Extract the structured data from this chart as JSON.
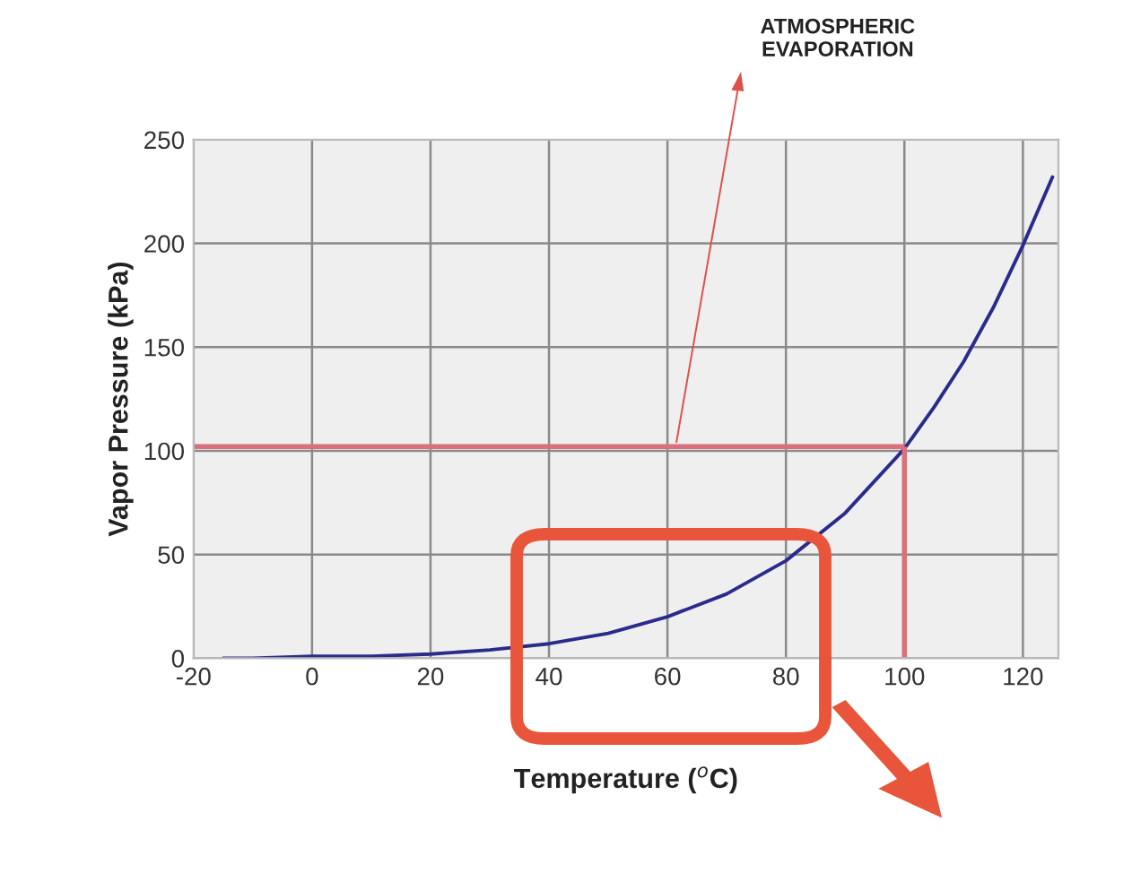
{
  "chart_data": {
    "type": "line",
    "xlabel": "Temperature ($^{o}$C)",
    "ylabel": "Vapor Pressure (kPa)",
    "x": [
      -15,
      -10,
      0,
      10,
      20,
      30,
      40,
      50,
      60,
      70,
      80,
      90,
      100,
      105,
      110,
      115,
      120,
      125
    ],
    "series": [
      {
        "color": "#2b2b8c",
        "values": [
          0,
          0,
          1,
          1,
          2,
          4,
          7,
          12,
          20,
          31,
          47,
          70,
          101,
          121,
          143,
          169,
          199,
          232
        ]
      }
    ],
    "xlim": [
      -20,
      126
    ],
    "ylim": [
      0,
      250
    ],
    "xticks": [
      -20,
      0,
      20,
      40,
      60,
      80,
      100,
      120
    ],
    "yticks": [
      0,
      50,
      100,
      150,
      200,
      250
    ],
    "grid": true,
    "marker": "none",
    "line_style": "solid",
    "ref_lines": [
      {
        "axis": "y",
        "value": 102,
        "color": "#d9707a"
      },
      {
        "axis": "x",
        "value": 100,
        "color": "#d9707a"
      }
    ],
    "annotations": [
      "ATMOSPHERIC\nEVAPORATION"
    ]
  }
}
